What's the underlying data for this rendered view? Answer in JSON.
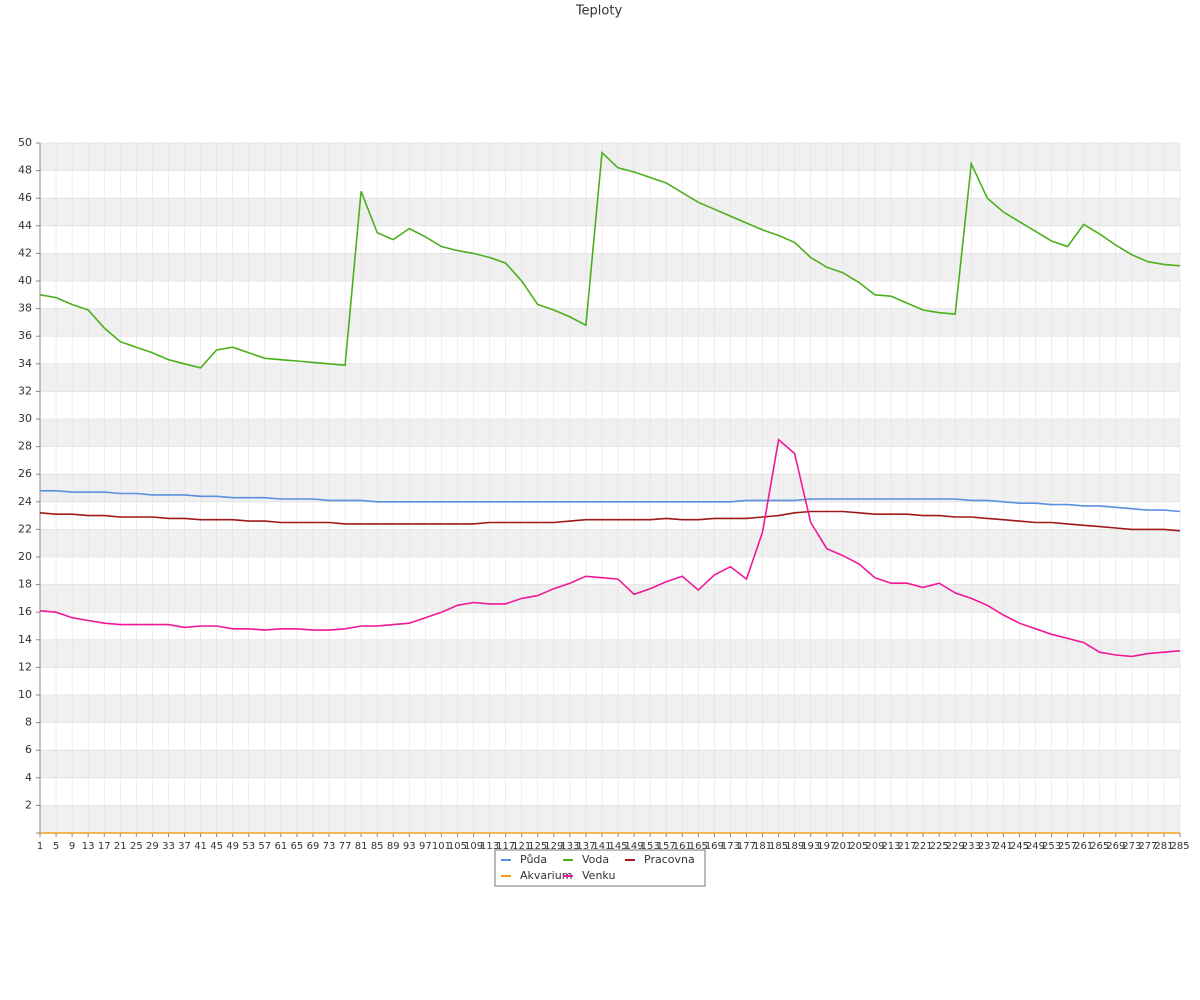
{
  "chart_data": {
    "type": "line",
    "title": "Teploty",
    "x": [
      1,
      5,
      9,
      13,
      17,
      21,
      25,
      29,
      33,
      37,
      41,
      45,
      49,
      53,
      57,
      61,
      65,
      69,
      73,
      77,
      81,
      85,
      89,
      93,
      97,
      101,
      105,
      109,
      113,
      117,
      121,
      125,
      129,
      133,
      137,
      141,
      145,
      149,
      153,
      157,
      161,
      165,
      169,
      173,
      177,
      181,
      185,
      189,
      193,
      197,
      201,
      205,
      209,
      213,
      217,
      221,
      225,
      229,
      233,
      237,
      241,
      245,
      249,
      253,
      257,
      261,
      265,
      269,
      273,
      277,
      281,
      285
    ],
    "xlim": [
      1,
      285
    ],
    "ylim": [
      0,
      50
    ],
    "yticks": [
      2,
      4,
      6,
      8,
      10,
      12,
      14,
      16,
      18,
      20,
      22,
      24,
      26,
      28,
      30,
      32,
      34,
      36,
      38,
      40,
      42,
      44,
      46,
      48,
      50
    ],
    "grid": true,
    "legend": "bottom",
    "series": [
      {
        "name": "Půda",
        "color": "#5b8fe0",
        "values": [
          24.8,
          24.8,
          24.7,
          24.7,
          24.7,
          24.6,
          24.6,
          24.5,
          24.5,
          24.5,
          24.4,
          24.4,
          24.3,
          24.3,
          24.3,
          24.2,
          24.2,
          24.2,
          24.1,
          24.1,
          24.1,
          24,
          24,
          24,
          24,
          24,
          24,
          24,
          24,
          24,
          24,
          24,
          24,
          24,
          24,
          24,
          24,
          24,
          24,
          24,
          24,
          24,
          24,
          24,
          24.1,
          24.1,
          24.1,
          24.1,
          24.2,
          24.2,
          24.2,
          24.2,
          24.2,
          24.2,
          24.2,
          24.2,
          24.2,
          24.2,
          24.1,
          24.1,
          24,
          23.9,
          23.9,
          23.8,
          23.8,
          23.7,
          23.7,
          23.6,
          23.5,
          23.4,
          23.4,
          23.3
        ]
      },
      {
        "name": "Voda",
        "color": "#4caf1c",
        "values": [
          39,
          38.8,
          38.3,
          37.9,
          36.6,
          35.6,
          35.2,
          34.8,
          34.3,
          34,
          33.7,
          35,
          35.2,
          34.8,
          34.4,
          34.3,
          34.2,
          34.1,
          34,
          33.9,
          46.5,
          43.5,
          43,
          43.8,
          43.2,
          42.5,
          42.2,
          42,
          41.7,
          41.3,
          40,
          38.3,
          37.9,
          37.4,
          36.8,
          49.3,
          48.2,
          47.9,
          47.5,
          47.1,
          46.4,
          45.7,
          45.2,
          44.7,
          44.2,
          43.7,
          43.3,
          42.8,
          41.7,
          41,
          40.6,
          39.9,
          39,
          38.9,
          38.4,
          37.9,
          37.7,
          37.6,
          48.5,
          46,
          45,
          44.3,
          43.6,
          42.9,
          42.5,
          44.1,
          43.4,
          42.6,
          41.9,
          41.4,
          41.2,
          41.1
        ]
      },
      {
        "name": "Pracovna",
        "color": "#a01818",
        "values": [
          23.2,
          23.1,
          23.1,
          23,
          23,
          22.9,
          22.9,
          22.9,
          22.8,
          22.8,
          22.7,
          22.7,
          22.7,
          22.6,
          22.6,
          22.5,
          22.5,
          22.5,
          22.5,
          22.4,
          22.4,
          22.4,
          22.4,
          22.4,
          22.4,
          22.4,
          22.4,
          22.4,
          22.5,
          22.5,
          22.5,
          22.5,
          22.5,
          22.6,
          22.7,
          22.7,
          22.7,
          22.7,
          22.7,
          22.8,
          22.7,
          22.7,
          22.8,
          22.8,
          22.8,
          22.9,
          23,
          23.2,
          23.3,
          23.3,
          23.3,
          23.2,
          23.1,
          23.1,
          23.1,
          23,
          23,
          22.9,
          22.9,
          22.8,
          22.7,
          22.6,
          22.5,
          22.5,
          22.4,
          22.3,
          22.2,
          22.1,
          22,
          22,
          22,
          21.9
        ]
      },
      {
        "name": "Akvarium",
        "color": "#f0a020",
        "values": [
          0,
          0,
          0,
          0,
          0,
          0,
          0,
          0,
          0,
          0,
          0,
          0,
          0,
          0,
          0,
          0,
          0,
          0,
          0,
          0,
          0,
          0,
          0,
          0,
          0,
          0,
          0,
          0,
          0,
          0,
          0,
          0,
          0,
          0,
          0,
          0,
          0,
          0,
          0,
          0,
          0,
          0,
          0,
          0,
          0,
          0,
          0,
          0,
          0,
          0,
          0,
          0,
          0,
          0,
          0,
          0,
          0,
          0,
          0,
          0,
          0,
          0,
          0,
          0,
          0,
          0,
          0,
          0,
          0,
          0,
          0,
          0
        ]
      },
      {
        "name": "Venku",
        "color": "#f0189a",
        "values": [
          16.1,
          16,
          15.6,
          15.4,
          15.2,
          15.1,
          15.1,
          15.1,
          15.1,
          14.9,
          15,
          15,
          14.8,
          14.8,
          14.7,
          14.8,
          14.8,
          14.7,
          14.7,
          14.8,
          15,
          15,
          15.1,
          15.2,
          15.6,
          16,
          16.5,
          16.7,
          16.6,
          16.6,
          17,
          17.2,
          17.7,
          18.1,
          18.6,
          18.5,
          18.4,
          17.3,
          17.7,
          18.2,
          18.6,
          17.6,
          18.7,
          19.3,
          18.4,
          21.8,
          28.5,
          27.5,
          22.5,
          20.6,
          20.1,
          19.5,
          18.5,
          18.1,
          18.1,
          17.8,
          18.1,
          17.4,
          17,
          16.5,
          15.8,
          15.2,
          14.8,
          14.4,
          14.1,
          13.8,
          13.1,
          12.9,
          12.8,
          13,
          13.1,
          13.2
        ]
      }
    ]
  }
}
